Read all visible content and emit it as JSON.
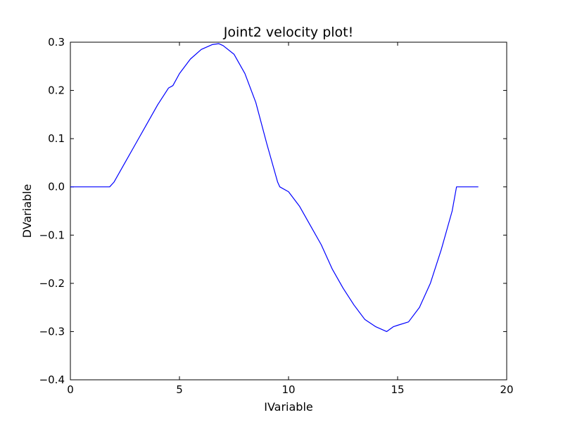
{
  "chart_data": {
    "type": "line",
    "title": "Joint2 velocity plot!",
    "xlabel": "IVariable",
    "ylabel": "DVariable",
    "xlim": [
      0,
      20
    ],
    "ylim": [
      -0.4,
      0.3
    ],
    "xticks": [
      0,
      5,
      10,
      15,
      20
    ],
    "xtick_labels": [
      "0",
      "5",
      "10",
      "15",
      "20"
    ],
    "yticks": [
      -0.4,
      -0.3,
      -0.2,
      -0.1,
      0.0,
      0.1,
      0.2,
      0.3
    ],
    "ytick_labels": [
      "−0.4",
      "−0.3",
      "−0.2",
      "−0.1",
      "0.0",
      "0.1",
      "0.2",
      "0.3"
    ],
    "grid": false,
    "series": [
      {
        "color": "#0000ff",
        "x": [
          0.0,
          0.5,
          1.0,
          1.5,
          1.8,
          2.0,
          2.5,
          3.0,
          3.5,
          4.0,
          4.5,
          4.7,
          5.0,
          5.5,
          6.0,
          6.5,
          6.8,
          7.0,
          7.5,
          8.0,
          8.5,
          9.0,
          9.5,
          9.6,
          10.0,
          10.5,
          11.0,
          11.5,
          12.0,
          12.5,
          13.0,
          13.5,
          14.0,
          14.5,
          14.8,
          15.0,
          15.5,
          16.0,
          16.5,
          17.0,
          17.5,
          17.7,
          18.0,
          18.5,
          18.7
        ],
        "y": [
          0.0,
          0.0,
          0.0,
          0.0,
          0.0,
          0.01,
          0.05,
          0.09,
          0.13,
          0.17,
          0.205,
          0.21,
          0.235,
          0.265,
          0.285,
          0.295,
          0.297,
          0.293,
          0.275,
          0.235,
          0.175,
          0.09,
          0.01,
          0.0,
          -0.01,
          -0.04,
          -0.08,
          -0.12,
          -0.17,
          -0.21,
          -0.245,
          -0.275,
          -0.29,
          -0.3,
          -0.29,
          -0.287,
          -0.28,
          -0.25,
          -0.2,
          -0.13,
          -0.05,
          0.0,
          0.0,
          0.0,
          0.0
        ]
      }
    ]
  }
}
